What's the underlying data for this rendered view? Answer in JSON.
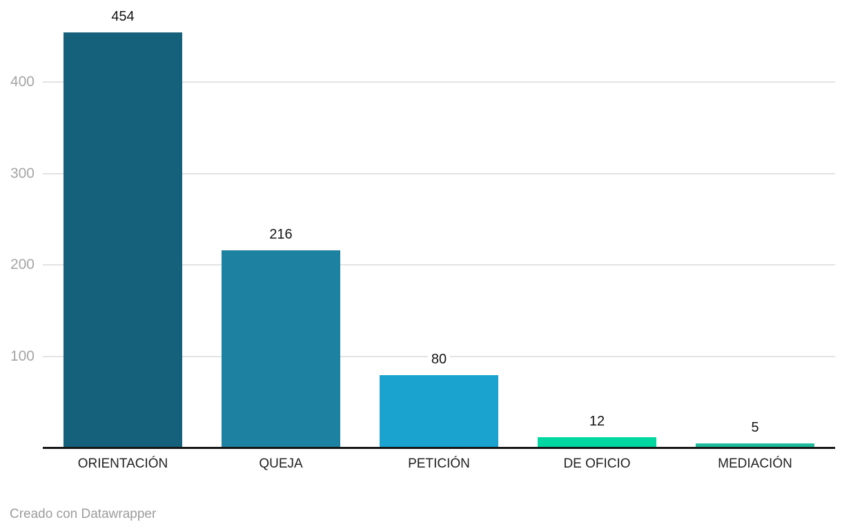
{
  "chart_data": {
    "type": "bar",
    "title": "",
    "xlabel": "",
    "ylabel": "",
    "categories": [
      "ORIENTACIÓN",
      "QUEJA",
      "PETICIÓN",
      "DE OFICIO",
      "MEDIACIÓN"
    ],
    "values": [
      454,
      216,
      80,
      12,
      5
    ],
    "value_labels": [
      "454",
      "216",
      "80",
      "12",
      "5"
    ],
    "bar_colors": [
      "#15607a",
      "#1d81a2",
      "#19a3ce",
      "#00d7a1",
      "#1dbc9d"
    ],
    "yticks": [
      100,
      200,
      300,
      400
    ],
    "ytick_labels": [
      "100",
      "200",
      "300",
      "400"
    ],
    "ylim": [
      0,
      490
    ],
    "grid": "horizontal-only",
    "legend": "none"
  },
  "footer": {
    "credit": "Creado con Datawrapper"
  },
  "colors": {
    "background": "#ffffff",
    "gridline": "#e3e3e3",
    "axis_line": "#151515",
    "tick_label": "#a5a5a5",
    "category_label": "#1e1e1e",
    "value_label": "#131313",
    "footer_text": "#9c9c9c"
  }
}
